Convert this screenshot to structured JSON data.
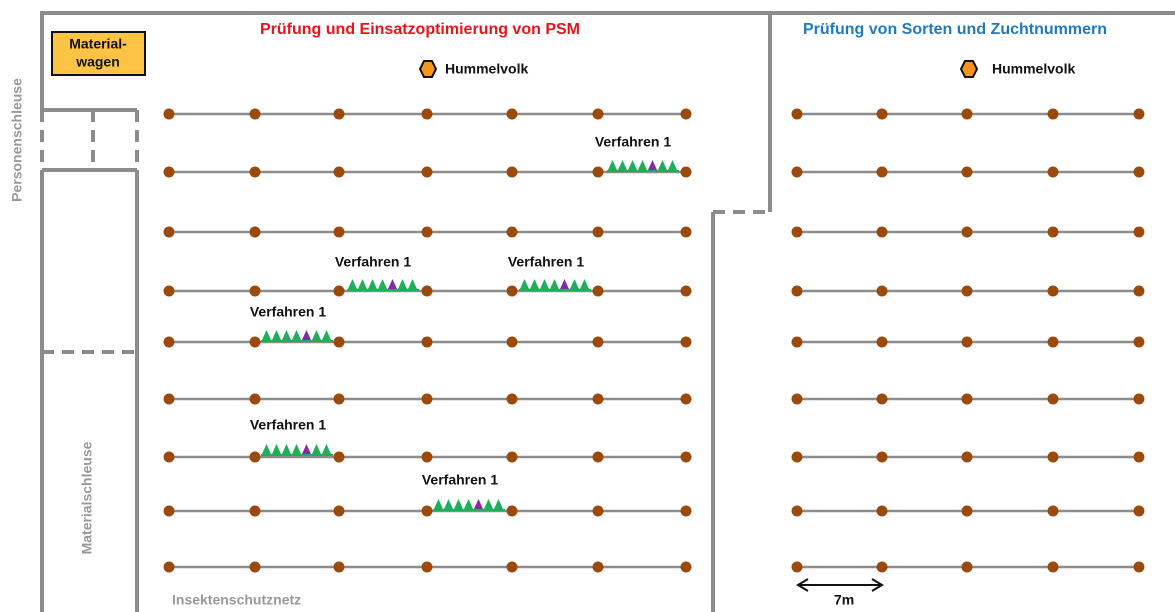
{
  "left_section": {
    "title": "Prüfung und Einsatzoptimierung von PSM",
    "hive": "Hummelvolk"
  },
  "right_section": {
    "title": "Prüfung von Sorten und Zuchtnummern",
    "hive": "Hummelvolk"
  },
  "material_cart": [
    "Material-",
    "wagen"
  ],
  "person_lock": "Personenschleuse",
  "material_lock": "Materialschleuse",
  "net": "Insektenschutznetz",
  "scale": "7m",
  "treatments": [
    {
      "label": "Verfahren 1"
    },
    {
      "label": "Verfahren 1"
    },
    {
      "label": "Verfahren 1"
    },
    {
      "label": "Verfahren 1"
    },
    {
      "label": "Verfahren 1"
    },
    {
      "label": "Verfahren 1"
    }
  ]
}
